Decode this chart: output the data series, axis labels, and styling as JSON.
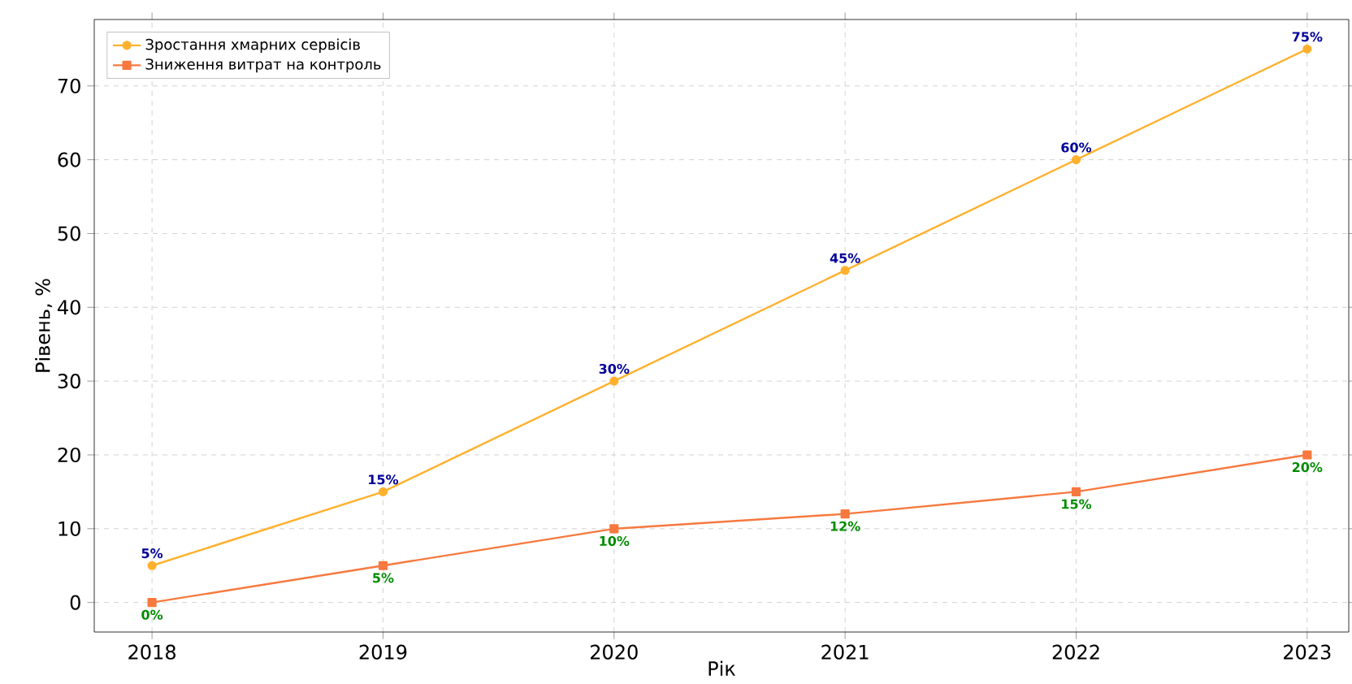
{
  "chart_data": {
    "type": "line",
    "xlabel": "Рік",
    "ylabel": "Рівень, %",
    "x": [
      2018,
      2019,
      2020,
      2021,
      2022,
      2023
    ],
    "series": [
      {
        "name": "Зростання хмарних сервісів",
        "color": "#ffb12e",
        "marker": "circle",
        "values": [
          5,
          15,
          30,
          45,
          60,
          75
        ],
        "value_labels": [
          "5%",
          "15%",
          "30%",
          "45%",
          "60%",
          "75%"
        ]
      },
      {
        "name": "Зниження витрат на контроль",
        "color": "#f7793f",
        "marker": "square",
        "values": [
          0,
          5,
          10,
          12,
          15,
          20
        ],
        "value_labels": [
          "0%",
          "5%",
          "10%",
          "12%",
          "15%",
          "20%"
        ]
      }
    ],
    "xlim": [
      2017.75,
      2023.18
    ],
    "ylim": [
      -4,
      79
    ],
    "xticks": [
      2018,
      2019,
      2020,
      2021,
      2022,
      2023
    ],
    "yticks": [
      0,
      10,
      20,
      30,
      40,
      50,
      60,
      70
    ],
    "grid": true,
    "legend": "top left",
    "line_style": "solid"
  }
}
